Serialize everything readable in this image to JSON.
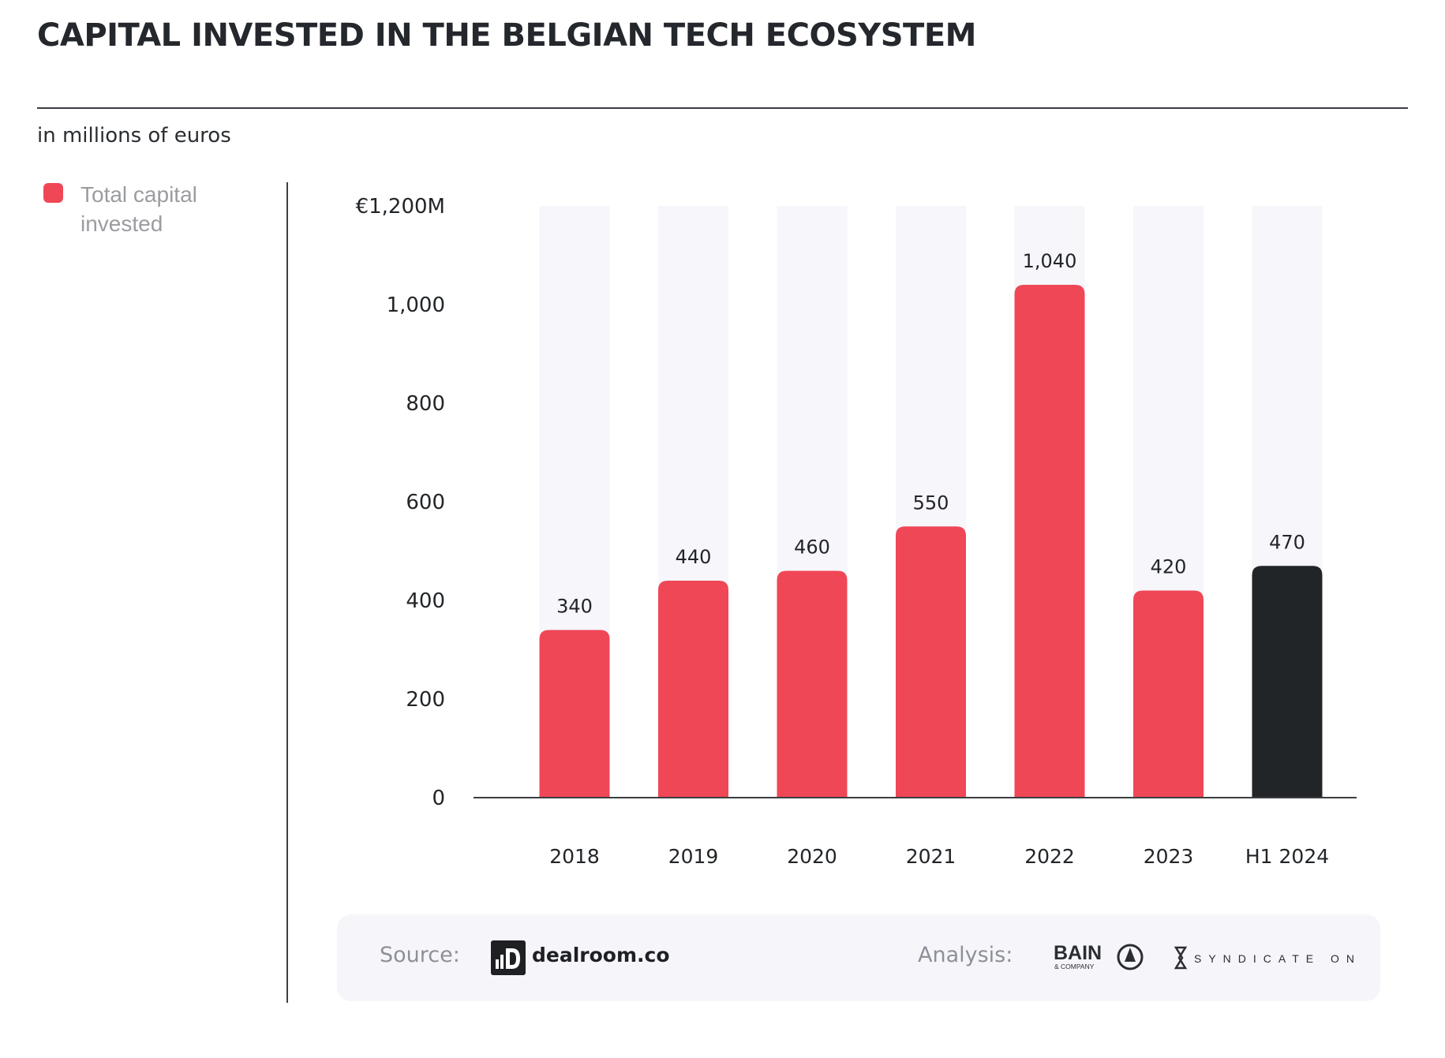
{
  "header": {
    "title": "CAPITAL INVESTED IN THE BELGIAN TECH ECOSYSTEM",
    "subtitle": "in millions of euros"
  },
  "legend": {
    "label": "Total capital invested",
    "color": "#f04756"
  },
  "colors": {
    "bar": "#f04756",
    "bar_highlight": "#222528",
    "track": "#f6f6fb",
    "axis": "#3b3e42",
    "text": "#222528"
  },
  "chart_data": {
    "type": "bar",
    "title": "CAPITAL INVESTED IN THE BELGIAN TECH ECOSYSTEM",
    "ylabel": "in millions of euros",
    "xlabel": "",
    "categories": [
      "2018",
      "2019",
      "2020",
      "2021",
      "2022",
      "2023",
      "H1 2024"
    ],
    "values": [
      340,
      440,
      460,
      550,
      1040,
      420,
      470
    ],
    "value_labels": [
      "340",
      "440",
      "460",
      "550",
      "1,040",
      "420",
      "470"
    ],
    "highlight": [
      false,
      false,
      false,
      false,
      false,
      false,
      true
    ],
    "ylim": [
      0,
      1200
    ],
    "yticks": [
      0,
      200,
      400,
      600,
      800,
      1000,
      1200
    ],
    "ytick_labels": [
      "0",
      "200",
      "400",
      "600",
      "800",
      "1,000",
      "€1,200M"
    ],
    "grid": false,
    "legend_position": "top-left"
  },
  "footer": {
    "source_label": "Source:",
    "source_logo_text": "dealroom.co",
    "analysis_label": "Analysis:",
    "bain_logo_name": "BAIN",
    "bain_logo_sub": "& COMPANY",
    "syndicate_logo_name": "SYNDICATE ONE"
  }
}
